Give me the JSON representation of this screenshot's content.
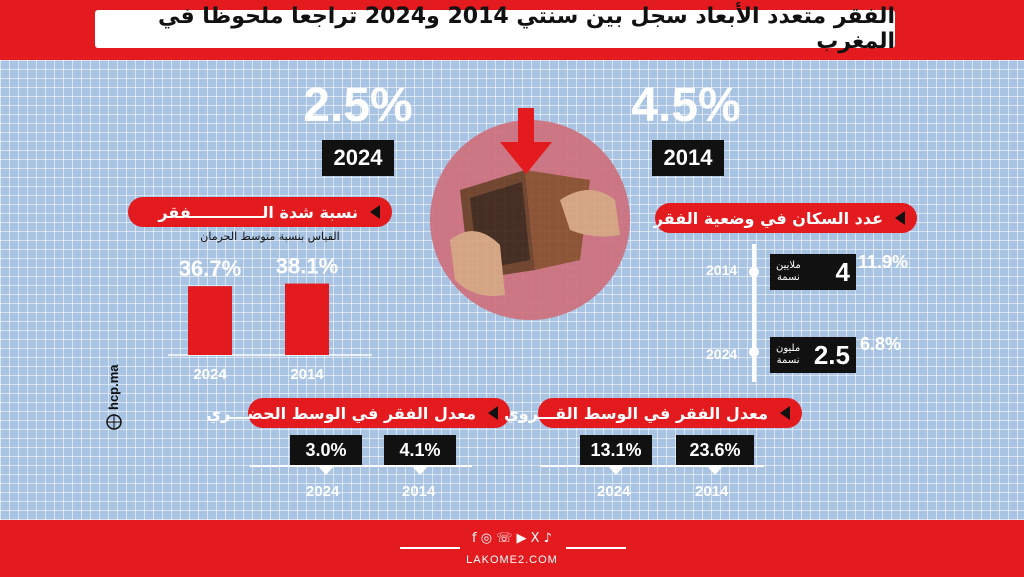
{
  "title": "الفقر متعدد الأبعاد سجل بين سنتي 2014 و2024 تراجعا ملحوظا في المغرب",
  "headline": {
    "left": {
      "value": "2.5%",
      "year": "2024"
    },
    "right": {
      "value": "4.5%",
      "year": "2014"
    }
  },
  "severity": {
    "heading": "نسبة شدة الـــــــــــــفقر",
    "note": "القياس بنسبة متوسط الحرمان",
    "labels": [
      "36.7%",
      "38.1%"
    ],
    "years": [
      "2024",
      "2014"
    ]
  },
  "population": {
    "heading": "عدد السكان في وضعية الفقر",
    "entries": [
      {
        "year": "2014",
        "number": "4",
        "unit_top": "ملايين",
        "unit_bottom": "نسمة",
        "pct": "11.9%"
      },
      {
        "year": "2024",
        "number": "2.5",
        "unit_top": "مليون",
        "unit_bottom": "نسمة",
        "pct": "6.8%"
      }
    ]
  },
  "urban": {
    "heading": "معدل الفقر في الوسط الحضـــري",
    "items": [
      {
        "value": "3.0%",
        "year": "2024"
      },
      {
        "value": "4.1%",
        "year": "2014"
      }
    ]
  },
  "rural": {
    "heading": "معدل الفقر في الوسط القـــروي",
    "items": [
      {
        "value": "13.1%",
        "year": "2024"
      },
      {
        "value": "23.6%",
        "year": "2014"
      }
    ]
  },
  "source": "hcp.ma",
  "footer": {
    "brand": "LAKOME2.COM",
    "icons": [
      "f",
      "◎",
      "☏",
      "▶",
      "X",
      "♪"
    ]
  },
  "colors": {
    "accent": "#e31b1f",
    "bg": "#a9c3e2",
    "box": "#111111"
  },
  "chart_data": {
    "type": "bar",
    "title": "نسبة شدة الـــــــــــــفقر",
    "subtitle": "القياس بنسبة متوسط الحرمان",
    "categories": [
      "2024",
      "2014"
    ],
    "values": [
      36.7,
      38.1
    ],
    "ylim": [
      0,
      40
    ],
    "grid": false,
    "legend": "none"
  }
}
